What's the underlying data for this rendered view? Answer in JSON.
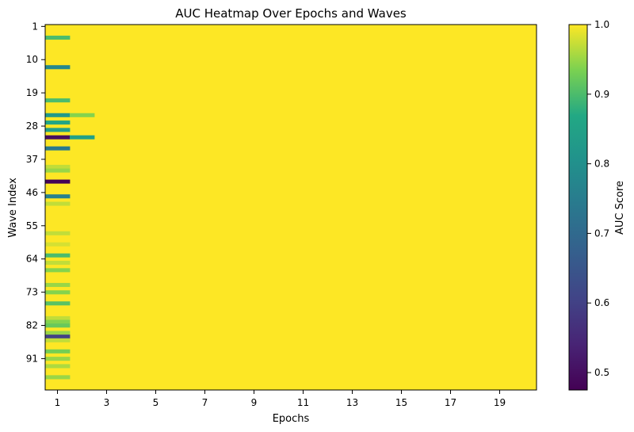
{
  "chart_data": {
    "type": "heatmap",
    "title": "AUC Heatmap Over Epochs and Waves",
    "xlabel": "Epochs",
    "ylabel": "Wave Index",
    "colorbar_label": "AUC Score",
    "colormap": "viridis",
    "vmin": 0.475,
    "vmax": 1.0,
    "x_range": [
      1,
      20
    ],
    "y_range": [
      1,
      99
    ],
    "x_ticks": [
      1,
      3,
      5,
      7,
      9,
      11,
      13,
      15,
      17,
      19
    ],
    "y_ticks": [
      1,
      10,
      19,
      28,
      37,
      46,
      55,
      64,
      73,
      82,
      91
    ],
    "colorbar_ticks": [
      0.5,
      0.6,
      0.7,
      0.8,
      0.9,
      1.0
    ],
    "colorbar_tick_labels": [
      "0.5",
      "0.6",
      "0.7",
      "0.8",
      "0.9",
      "1.0"
    ],
    "default_value": 1.0,
    "cells": [
      {
        "wave": 4,
        "epoch": 1,
        "auc": 0.9
      },
      {
        "wave": 12,
        "epoch": 1,
        "auc": 0.78
      },
      {
        "wave": 21,
        "epoch": 1,
        "auc": 0.9
      },
      {
        "wave": 25,
        "epoch": 1,
        "auc": 0.83
      },
      {
        "wave": 25,
        "epoch": 2,
        "auc": 0.94
      },
      {
        "wave": 27,
        "epoch": 1,
        "auc": 0.86
      },
      {
        "wave": 29,
        "epoch": 1,
        "auc": 0.84
      },
      {
        "wave": 31,
        "epoch": 1,
        "auc": 0.5
      },
      {
        "wave": 31,
        "epoch": 2,
        "auc": 0.85
      },
      {
        "wave": 34,
        "epoch": 1,
        "auc": 0.74
      },
      {
        "wave": 39,
        "epoch": 1,
        "auc": 0.97
      },
      {
        "wave": 40,
        "epoch": 1,
        "auc": 0.95
      },
      {
        "wave": 43,
        "epoch": 1,
        "auc": 0.48
      },
      {
        "wave": 47,
        "epoch": 1,
        "auc": 0.76
      },
      {
        "wave": 49,
        "epoch": 1,
        "auc": 0.97
      },
      {
        "wave": 57,
        "epoch": 1,
        "auc": 0.97
      },
      {
        "wave": 60,
        "epoch": 1,
        "auc": 0.98
      },
      {
        "wave": 63,
        "epoch": 1,
        "auc": 0.9
      },
      {
        "wave": 65,
        "epoch": 1,
        "auc": 0.97
      },
      {
        "wave": 67,
        "epoch": 1,
        "auc": 0.94
      },
      {
        "wave": 71,
        "epoch": 1,
        "auc": 0.95
      },
      {
        "wave": 73,
        "epoch": 1,
        "auc": 0.94
      },
      {
        "wave": 76,
        "epoch": 1,
        "auc": 0.91
      },
      {
        "wave": 80,
        "epoch": 1,
        "auc": 0.97
      },
      {
        "wave": 81,
        "epoch": 1,
        "auc": 0.94
      },
      {
        "wave": 82,
        "epoch": 1,
        "auc": 0.92
      },
      {
        "wave": 84,
        "epoch": 1,
        "auc": 0.95
      },
      {
        "wave": 85,
        "epoch": 1,
        "auc": 0.6
      },
      {
        "wave": 86,
        "epoch": 1,
        "auc": 0.97
      },
      {
        "wave": 89,
        "epoch": 1,
        "auc": 0.93
      },
      {
        "wave": 91,
        "epoch": 1,
        "auc": 0.95
      },
      {
        "wave": 93,
        "epoch": 1,
        "auc": 0.96
      },
      {
        "wave": 96,
        "epoch": 1,
        "auc": 0.95
      }
    ]
  }
}
